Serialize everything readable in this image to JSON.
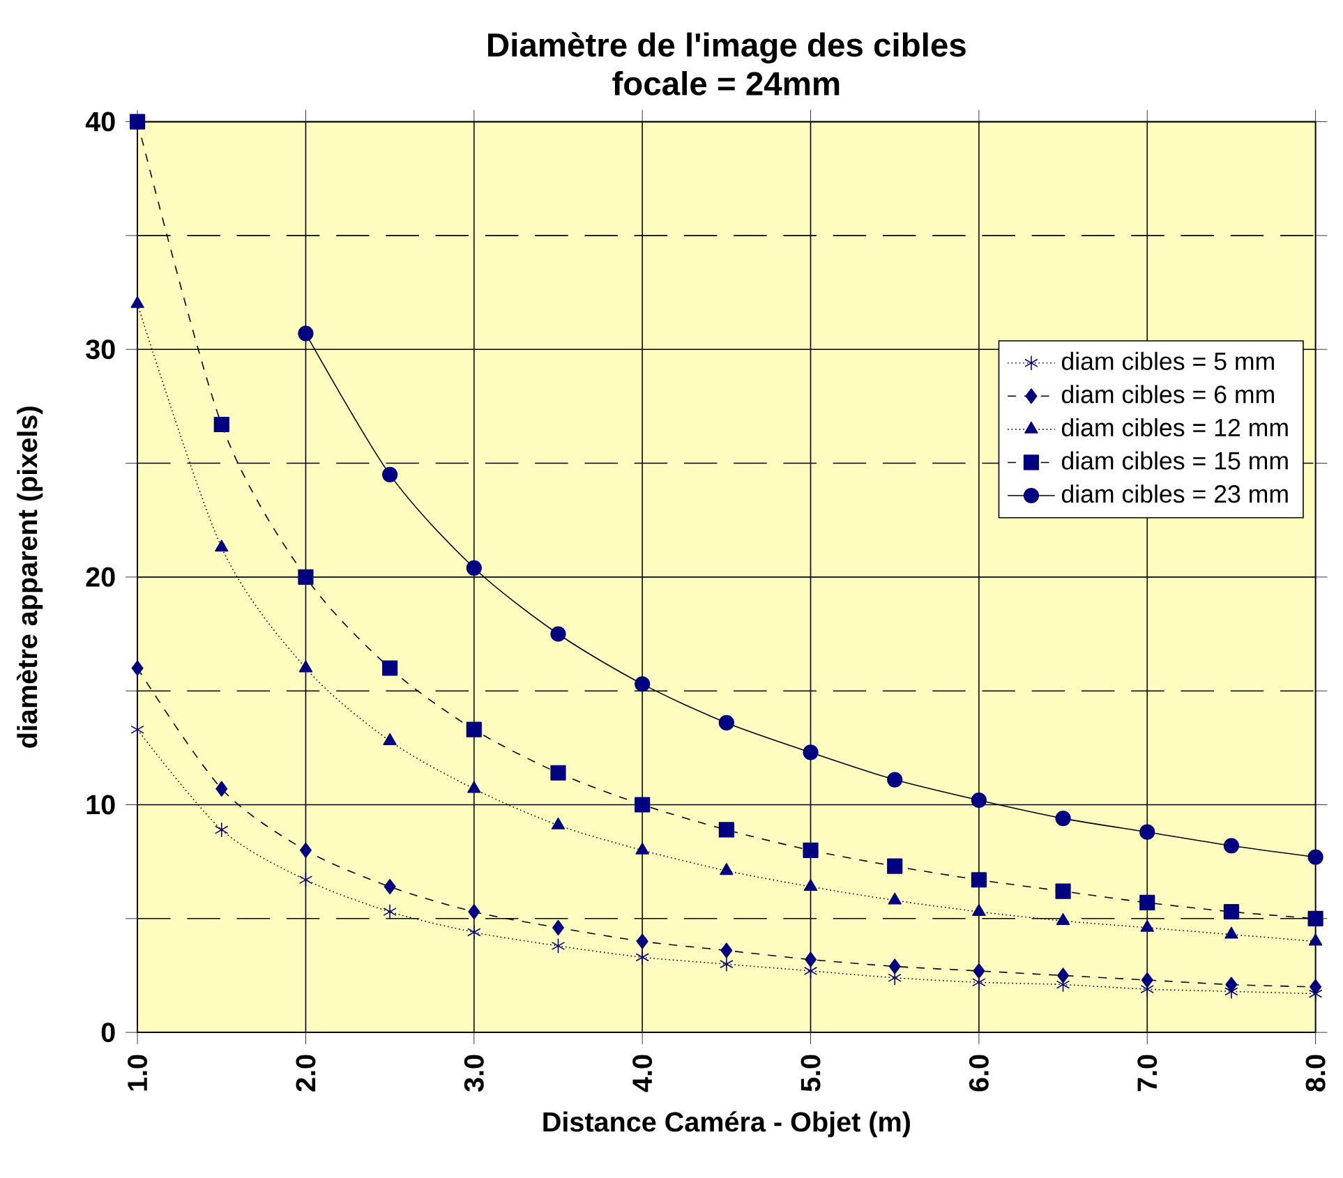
{
  "chart_data": {
    "type": "line",
    "title": "Diamètre de l'image des cibles",
    "subtitle": "focale = 24mm",
    "xlabel": "Distance Caméra - Objet (m)",
    "ylabel": "diamètre apparent (pixels)",
    "x": [
      1.0,
      1.5,
      2.0,
      2.5,
      3.0,
      3.5,
      4.0,
      4.5,
      5.0,
      5.5,
      6.0,
      6.5,
      7.0,
      7.5,
      8.0
    ],
    "xlim": [
      1,
      8
    ],
    "xticks": [
      {
        "value": 1,
        "label": "1.0"
      },
      {
        "value": 2,
        "label": "2.0"
      },
      {
        "value": 3,
        "label": "3.0"
      },
      {
        "value": 4,
        "label": "4.0"
      },
      {
        "value": 5,
        "label": "5.0"
      },
      {
        "value": 6,
        "label": "6.0"
      },
      {
        "value": 7,
        "label": "7.0"
      },
      {
        "value": 8,
        "label": "8.0"
      }
    ],
    "ylim": [
      0,
      40
    ],
    "yticks": [
      0,
      {
        "value": 5,
        "label": null
      },
      10,
      {
        "value": 15,
        "label": null
      },
      20,
      {
        "value": 25,
        "label": null
      },
      30,
      {
        "value": 35,
        "label": null
      },
      40
    ],
    "grid": true,
    "legend": "top right",
    "series": [
      {
        "name": "diam cibles = 5 mm",
        "color": "#000080",
        "marker": "cross",
        "line_style": "dotted",
        "values": [
          13.3,
          8.9,
          6.7,
          5.3,
          4.4,
          3.8,
          3.3,
          3.0,
          2.7,
          2.4,
          2.2,
          2.1,
          1.9,
          1.8,
          1.7
        ]
      },
      {
        "name": "diam cibles = 6 mm",
        "color": "#000080",
        "marker": "diamond",
        "line_style": "dashed",
        "values": [
          16,
          10.7,
          8,
          6.4,
          5.3,
          4.6,
          4,
          3.6,
          3.2,
          2.9,
          2.7,
          2.5,
          2.3,
          2.1,
          2.0
        ]
      },
      {
        "name": "diam cibles = 12 mm",
        "color": "#000080",
        "marker": "triangle",
        "line_style": "dotted",
        "values": [
          32,
          21.3,
          16,
          12.8,
          10.7,
          9.1,
          8,
          7.1,
          6.4,
          5.8,
          5.3,
          4.9,
          4.6,
          4.3,
          4.0
        ]
      },
      {
        "name": "diam cibles = 15 mm",
        "color": "#000080",
        "marker": "square",
        "line_style": "dashed",
        "values": [
          40,
          26.7,
          20,
          16,
          13.3,
          11.4,
          10,
          8.9,
          8,
          7.3,
          6.7,
          6.2,
          5.7,
          5.3,
          5.0
        ]
      },
      {
        "name": "diam cibles = 23 mm",
        "color": "#000080",
        "marker": "circle",
        "line_style": "solid",
        "values": [
          null,
          null,
          30.7,
          24.5,
          20.4,
          17.5,
          15.3,
          13.6,
          12.3,
          11.1,
          10.2,
          9.4,
          8.8,
          8.2,
          7.7
        ]
      }
    ]
  }
}
